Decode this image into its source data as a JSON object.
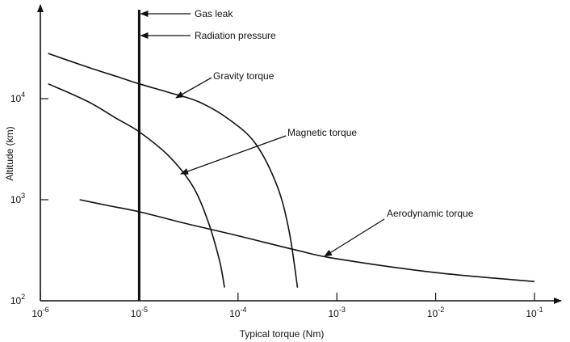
{
  "chart_data": {
    "type": "line",
    "title": "",
    "xlabel": "Typical torque (Nm)",
    "ylabel": "Altitude (km)",
    "x_scale": "log",
    "y_scale": "log",
    "xlim": [
      1e-06,
      0.1
    ],
    "ylim": [
      100,
      100000
    ],
    "x_ticks": [
      {
        "value": 1e-06,
        "base": "10",
        "exp": "-6"
      },
      {
        "value": 1e-05,
        "base": "10",
        "exp": "-5"
      },
      {
        "value": 0.0001,
        "base": "10",
        "exp": "-4"
      },
      {
        "value": 0.001,
        "base": "10",
        "exp": "-3"
      },
      {
        "value": 0.01,
        "base": "10",
        "exp": "-2"
      },
      {
        "value": 0.1,
        "base": "10",
        "exp": "-1"
      }
    ],
    "y_ticks": [
      {
        "value": 100,
        "base": "10",
        "exp": "2"
      },
      {
        "value": 1000,
        "base": "10",
        "exp": "3"
      },
      {
        "value": 10000,
        "base": "10",
        "exp": "4"
      }
    ],
    "series": [
      {
        "name": "Gravity torque",
        "points": [
          [
            1.2e-06,
            28000
          ],
          [
            3e-06,
            20500
          ],
          [
            6e-06,
            16500
          ],
          [
            1e-05,
            14000
          ],
          [
            2e-05,
            11500
          ],
          [
            4e-05,
            9300
          ],
          [
            8e-05,
            6300
          ],
          [
            0.00015,
            3600
          ],
          [
            0.00025,
            1350
          ],
          [
            0.00033,
            480
          ],
          [
            0.0004,
            135
          ]
        ]
      },
      {
        "name": "Magnetic torque",
        "points": [
          [
            1.2e-06,
            14000
          ],
          [
            3e-06,
            9400
          ],
          [
            6e-06,
            6300
          ],
          [
            1e-05,
            4700
          ],
          [
            2e-05,
            2700
          ],
          [
            3.5e-05,
            1350
          ],
          [
            5e-05,
            600
          ],
          [
            6.5e-05,
            250
          ],
          [
            7.3e-05,
            135
          ]
        ]
      },
      {
        "name": "Aerodynamic torque",
        "points": [
          [
            2.5e-06,
            1000
          ],
          [
            5e-06,
            870
          ],
          [
            1e-05,
            760
          ],
          [
            3e-05,
            580
          ],
          [
            0.0001,
            440
          ],
          [
            0.0004,
            315
          ],
          [
            0.001,
            260
          ],
          [
            0.01,
            190
          ],
          [
            0.1,
            155
          ]
        ]
      },
      {
        "name": "Gas leak",
        "vertical_x": 1e-05
      },
      {
        "name": "Radiation pressure",
        "vertical_x": 1e-05
      }
    ],
    "annotations": [
      {
        "text": "Gas leak",
        "target_series": "Gas leak"
      },
      {
        "text": "Radiation pressure",
        "target_series": "Radiation pressure"
      },
      {
        "text": "Gravity torque",
        "target_series": "Gravity torque"
      },
      {
        "text": "Magnetic torque",
        "target_series": "Magnetic torque"
      },
      {
        "text": "Aerodynamic torque",
        "target_series": "Aerodynamic torque"
      }
    ],
    "grid": false,
    "legend": "none"
  }
}
